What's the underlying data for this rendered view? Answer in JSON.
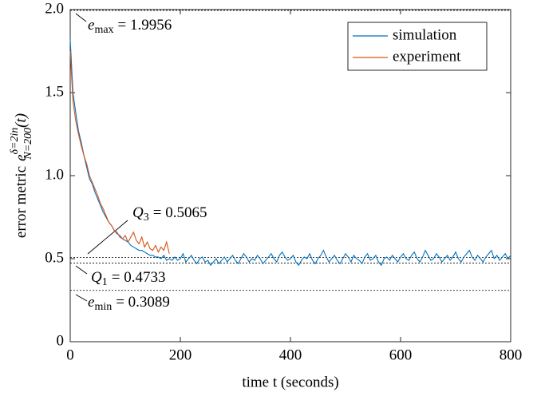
{
  "chart_data": {
    "type": "line",
    "xlabel": "time t (seconds)",
    "ylabel": "error metric",
    "ylabel_symbol": "e",
    "ylabel_superscript": "δ=2in",
    "ylabel_subscript": "N=200",
    "ylabel_argument": "(t)",
    "xlim": [
      0,
      800
    ],
    "ylim": [
      0,
      2
    ],
    "xticks": [
      0,
      200,
      400,
      600,
      800
    ],
    "yticks": [
      0,
      0.5,
      {
        "value": 1,
        "label": "1.0"
      },
      1.5,
      {
        "value": 2,
        "label": "2.0"
      }
    ],
    "legend": "upper right",
    "annotations": [
      {
        "value": 1.9956,
        "symbol": "e",
        "subscript": "max",
        "label": "= 1.9956"
      },
      {
        "value": 0.5065,
        "symbol": "Q",
        "subscript": "3",
        "label": "= 0.5065"
      },
      {
        "value": 0.4733,
        "symbol": "Q",
        "subscript": "1",
        "label": "= 0.4733"
      },
      {
        "value": 0.3089,
        "symbol": "e",
        "subscript": "min",
        "label": "= 0.3089"
      }
    ],
    "series": [
      {
        "name": "simulation",
        "color": "#0072BD",
        "x": [
          0,
          5,
          10,
          15,
          20,
          25,
          30,
          35,
          40,
          45,
          50,
          55,
          60,
          65,
          70,
          75,
          80,
          85,
          90,
          95,
          100,
          105,
          110,
          115,
          120,
          125,
          130,
          135,
          140,
          145,
          150,
          155,
          160,
          165,
          170,
          175,
          180,
          185,
          190,
          195,
          200,
          205,
          210,
          215,
          220,
          225,
          230,
          235,
          240,
          245,
          250,
          255,
          260,
          265,
          270,
          275,
          280,
          285,
          290,
          295,
          300,
          305,
          310,
          315,
          320,
          325,
          330,
          335,
          340,
          345,
          350,
          355,
          360,
          365,
          370,
          375,
          380,
          385,
          390,
          395,
          400,
          405,
          410,
          415,
          420,
          425,
          430,
          435,
          440,
          445,
          450,
          455,
          460,
          465,
          470,
          475,
          480,
          485,
          490,
          495,
          500,
          505,
          510,
          515,
          520,
          525,
          530,
          535,
          540,
          545,
          550,
          555,
          560,
          565,
          570,
          575,
          580,
          585,
          590,
          595,
          600,
          605,
          610,
          615,
          620,
          625,
          630,
          635,
          640,
          645,
          650,
          655,
          660,
          665,
          670,
          675,
          680,
          685,
          690,
          695,
          700,
          705,
          710,
          715,
          720,
          725,
          730,
          735,
          740,
          745,
          750,
          755,
          760,
          765,
          770,
          775,
          780,
          785,
          790,
          795,
          800
        ],
        "values": [
          1.82,
          1.5,
          1.38,
          1.27,
          1.2,
          1.12,
          1.05,
          0.98,
          0.95,
          0.9,
          0.86,
          0.82,
          0.78,
          0.75,
          0.72,
          0.7,
          0.67,
          0.65,
          0.64,
          0.62,
          0.61,
          0.6,
          0.58,
          0.57,
          0.56,
          0.55,
          0.55,
          0.54,
          0.53,
          0.52,
          0.52,
          0.51,
          0.51,
          0.5,
          0.52,
          0.49,
          0.5,
          0.49,
          0.51,
          0.49,
          0.5,
          0.53,
          0.48,
          0.5,
          0.52,
          0.49,
          0.47,
          0.5,
          0.51,
          0.48,
          0.49,
          0.46,
          0.48,
          0.5,
          0.47,
          0.49,
          0.51,
          0.48,
          0.5,
          0.52,
          0.49,
          0.47,
          0.5,
          0.53,
          0.51,
          0.48,
          0.5,
          0.49,
          0.52,
          0.5,
          0.47,
          0.49,
          0.51,
          0.53,
          0.5,
          0.48,
          0.52,
          0.54,
          0.51,
          0.49,
          0.5,
          0.52,
          0.48,
          0.46,
          0.49,
          0.51,
          0.5,
          0.53,
          0.49,
          0.47,
          0.5,
          0.52,
          0.55,
          0.51,
          0.48,
          0.5,
          0.52,
          0.49,
          0.47,
          0.5,
          0.53,
          0.51,
          0.48,
          0.52,
          0.5,
          0.49,
          0.47,
          0.51,
          0.53,
          0.49,
          0.5,
          0.52,
          0.48,
          0.46,
          0.5,
          0.51,
          0.49,
          0.52,
          0.5,
          0.48,
          0.51,
          0.53,
          0.5,
          0.49,
          0.52,
          0.54,
          0.5,
          0.48,
          0.51,
          0.55,
          0.52,
          0.49,
          0.5,
          0.53,
          0.51,
          0.48,
          0.5,
          0.52,
          0.49,
          0.51,
          0.54,
          0.5,
          0.48,
          0.51,
          0.53,
          0.55,
          0.51,
          0.49,
          0.52,
          0.5,
          0.48,
          0.51,
          0.53,
          0.55,
          0.5,
          0.52,
          0.49,
          0.51,
          0.53,
          0.5,
          0.52
        ]
      },
      {
        "name": "experiment",
        "color": "#D95319",
        "x": [
          0,
          5,
          10,
          15,
          20,
          25,
          30,
          35,
          40,
          45,
          50,
          55,
          60,
          65,
          70,
          75,
          80,
          85,
          90,
          95,
          100,
          105,
          110,
          115,
          120,
          125,
          130,
          135,
          140,
          145,
          150,
          155,
          160,
          165,
          170,
          175,
          180
        ],
        "values": [
          1.75,
          1.45,
          1.33,
          1.25,
          1.18,
          1.12,
          1.07,
          1.0,
          0.96,
          0.92,
          0.88,
          0.83,
          0.8,
          0.76,
          0.72,
          0.7,
          0.67,
          0.66,
          0.63,
          0.62,
          0.64,
          0.6,
          0.63,
          0.66,
          0.61,
          0.59,
          0.63,
          0.57,
          0.6,
          0.56,
          0.55,
          0.58,
          0.54,
          0.57,
          0.55,
          0.6,
          0.53
        ]
      }
    ]
  }
}
